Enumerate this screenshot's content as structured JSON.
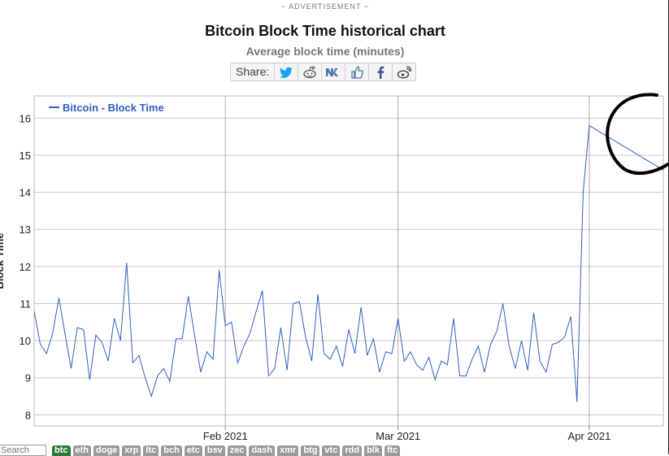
{
  "advertisement_label": "~ ADVERTISEMENT ~",
  "share": {
    "label": "Share:",
    "buttons": [
      "twitter-icon",
      "reddit-icon",
      "vk-icon",
      "like-icon",
      "facebook-icon",
      "weibo-icon"
    ]
  },
  "search": {
    "placeholder": "Search"
  },
  "coin_tabs": [
    "btc",
    "eth",
    "doge",
    "xrp",
    "ltc",
    "bch",
    "etc",
    "bsv",
    "zec",
    "dash",
    "xmr",
    "btg",
    "vtc",
    "rdd",
    "blk",
    "ftc"
  ],
  "colors": {
    "series": "#3060c0",
    "grid": "#c8c8c8",
    "active_tab": "#2f7a3a",
    "annotation": "#000000"
  },
  "chart_data": {
    "type": "line",
    "title": "Bitcoin Block Time historical chart",
    "subtitle": "Average block time (minutes)",
    "ylabel": "Block Time",
    "xlabel": "",
    "ylim": [
      7.7,
      16.6
    ],
    "xlim": [
      "2021-01-01",
      "2021-04-13"
    ],
    "y_ticks": [
      8,
      9,
      10,
      11,
      12,
      13,
      14,
      15,
      16
    ],
    "x_ticks": [
      {
        "label": "Feb 2021",
        "date": "2021-02-01"
      },
      {
        "label": "Mar 2021",
        "date": "2021-03-01"
      },
      {
        "label": "Apr 2021",
        "date": "2021-04-01"
      }
    ],
    "grid": true,
    "legend_position": "top-left",
    "series": [
      {
        "name": "Bitcoin - Block Time",
        "x": [
          "2021-01-01",
          "2021-01-02",
          "2021-01-03",
          "2021-01-04",
          "2021-01-05",
          "2021-01-06",
          "2021-01-07",
          "2021-01-08",
          "2021-01-09",
          "2021-01-10",
          "2021-01-11",
          "2021-01-12",
          "2021-01-13",
          "2021-01-14",
          "2021-01-15",
          "2021-01-16",
          "2021-01-17",
          "2021-01-18",
          "2021-01-19",
          "2021-01-20",
          "2021-01-21",
          "2021-01-22",
          "2021-01-23",
          "2021-01-24",
          "2021-01-25",
          "2021-01-26",
          "2021-01-27",
          "2021-01-28",
          "2021-01-29",
          "2021-01-30",
          "2021-01-31",
          "2021-02-01",
          "2021-02-02",
          "2021-02-03",
          "2021-02-04",
          "2021-02-05",
          "2021-02-06",
          "2021-02-07",
          "2021-02-08",
          "2021-02-09",
          "2021-02-10",
          "2021-02-11",
          "2021-02-12",
          "2021-02-13",
          "2021-02-14",
          "2021-02-15",
          "2021-02-16",
          "2021-02-17",
          "2021-02-18",
          "2021-02-19",
          "2021-02-20",
          "2021-02-21",
          "2021-02-22",
          "2021-02-23",
          "2021-02-24",
          "2021-02-25",
          "2021-02-26",
          "2021-02-27",
          "2021-02-28",
          "2021-03-01",
          "2021-03-02",
          "2021-03-03",
          "2021-03-04",
          "2021-03-05",
          "2021-03-06",
          "2021-03-07",
          "2021-03-08",
          "2021-03-09",
          "2021-03-10",
          "2021-03-11",
          "2021-03-12",
          "2021-03-13",
          "2021-03-14",
          "2021-03-15",
          "2021-03-16",
          "2021-03-17",
          "2021-03-18",
          "2021-03-19",
          "2021-03-20",
          "2021-03-21",
          "2021-03-22",
          "2021-03-23",
          "2021-03-24",
          "2021-03-25",
          "2021-03-26",
          "2021-03-27",
          "2021-03-28",
          "2021-03-29",
          "2021-03-30",
          "2021-03-31",
          "2021-04-01",
          "2021-04-02",
          "2021-04-03",
          "2021-04-04",
          "2021-04-05",
          "2021-04-06",
          "2021-04-07",
          "2021-04-08",
          "2021-04-09",
          "2021-04-10",
          "2021-04-11",
          "2021-04-12",
          "2021-04-13"
        ],
        "y": [
          10.8,
          9.9,
          9.65,
          10.2,
          11.15,
          10.2,
          9.25,
          10.35,
          10.3,
          8.95,
          10.15,
          9.95,
          9.45,
          10.6,
          10.0,
          12.1,
          9.4,
          9.6,
          9.0,
          8.5,
          9.05,
          9.25,
          8.9,
          10.05,
          10.05,
          11.2,
          10.15,
          9.15,
          9.7,
          9.5,
          11.9,
          10.4,
          10.5,
          9.4,
          9.85,
          10.2,
          10.8,
          11.35,
          9.05,
          9.25,
          10.35,
          9.2,
          11.0,
          11.05,
          10.1,
          9.45,
          11.25,
          9.65,
          9.5,
          9.85,
          9.3,
          10.3,
          9.65,
          10.9,
          9.6,
          10.05,
          9.15,
          9.7,
          9.65,
          10.6,
          9.45,
          9.7,
          9.35,
          9.2,
          9.55,
          8.95,
          9.45,
          9.35,
          10.6,
          9.05,
          9.05,
          9.5,
          9.85,
          9.15,
          9.9,
          10.25,
          11.0,
          9.85,
          9.25,
          10.0,
          9.2,
          10.75,
          9.45,
          9.15,
          9.9,
          9.95,
          10.1,
          10.65,
          8.35,
          14.0,
          15.8,
          15.7,
          15.6,
          15.5,
          15.4,
          15.3,
          15.2,
          15.1,
          15.0,
          14.9,
          14.8,
          14.7,
          14.6
        ]
      }
    ]
  }
}
